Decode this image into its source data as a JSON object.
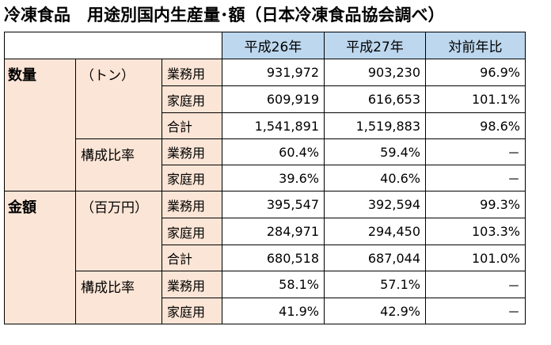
{
  "title": "冷凍食品　用途別国内生産量･額（日本冷凍食品協会調べ）",
  "columns": [
    "平成26年",
    "平成27年",
    "対前年比"
  ],
  "sections": [
    {
      "name": "数量",
      "unit": "（トン）",
      "rows": [
        {
          "label": "業務用",
          "values": [
            "931,972",
            "903,230",
            "96.9%"
          ]
        },
        {
          "label": "家庭用",
          "values": [
            "609,919",
            "616,653",
            "101.1%"
          ]
        },
        {
          "label": "合計",
          "values": [
            "1,541,891",
            "1,519,883",
            "98.6%"
          ]
        }
      ],
      "ratio_label": "構成比率",
      "ratio_rows": [
        {
          "label": "業務用",
          "values": [
            "60.4%",
            "59.4%",
            "－"
          ]
        },
        {
          "label": "家庭用",
          "values": [
            "39.6%",
            "40.6%",
            "－"
          ]
        }
      ]
    },
    {
      "name": "金額",
      "unit": "（百万円）",
      "rows": [
        {
          "label": "業務用",
          "values": [
            "395,547",
            "392,594",
            "99.3%"
          ]
        },
        {
          "label": "家庭用",
          "values": [
            "284,971",
            "294,450",
            "103.3%"
          ]
        },
        {
          "label": "合計",
          "values": [
            "680,518",
            "687,044",
            "101.0%"
          ]
        }
      ],
      "ratio_label": "構成比率",
      "ratio_rows": [
        {
          "label": "業務用",
          "values": [
            "58.1%",
            "57.1%",
            "－"
          ]
        },
        {
          "label": "家庭用",
          "values": [
            "41.9%",
            "42.9%",
            "－"
          ]
        }
      ]
    }
  ]
}
